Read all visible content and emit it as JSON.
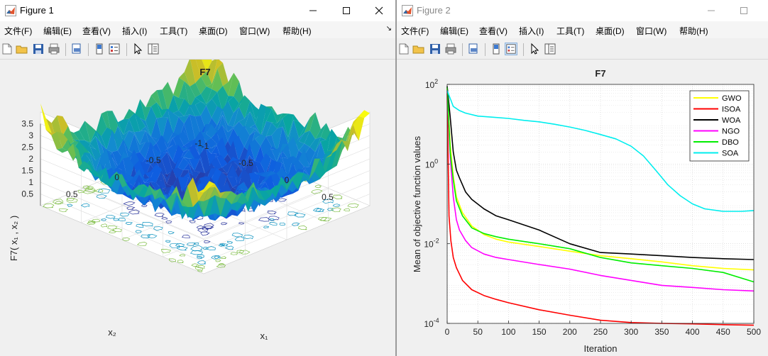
{
  "windows": [
    {
      "title": "Figure 1",
      "menu": [
        "文件(F)",
        "编辑(E)",
        "查看(V)",
        "插入(I)",
        "工具(T)",
        "桌面(D)",
        "窗口(W)",
        "帮助(H)"
      ],
      "menu_overflow_icon": "chevron-icon",
      "window_buttons": [
        "minimize-icon",
        "maximize-icon",
        "close-icon"
      ],
      "toolbar_icons": [
        "new-figure-icon",
        "open-icon",
        "save-icon",
        "print-icon",
        "print-preview-icon",
        "link-icon",
        "colorbar-icon",
        "legend-icon",
        "pointer-icon",
        "property-editor-icon"
      ]
    },
    {
      "title": "Figure 2",
      "menu": [
        "文件(F)",
        "编辑(E)",
        "查看(V)",
        "插入(I)",
        "工具(T)",
        "桌面(D)",
        "窗口(W)",
        "帮助(H)"
      ],
      "window_buttons": [
        "minimize-icon",
        "maximize-icon"
      ],
      "toolbar_icons": [
        "new-figure-icon",
        "open-icon",
        "save-icon",
        "print-icon",
        "print-preview-icon",
        "link-icon",
        "colorbar-icon",
        "legend-icon",
        "pointer-icon",
        "property-editor-icon"
      ]
    }
  ],
  "chart_data": [
    {
      "type": "surface3d",
      "title": "F7",
      "xlabel": "x₁",
      "ylabel": "x₂",
      "zlabel": "F7( x₁ , x₂ )",
      "x_ticks": [
        "-1",
        "-0.5",
        "0",
        "0.5"
      ],
      "y_ticks": [
        "-1",
        "-0.5",
        "0",
        "0.5"
      ],
      "z_ticks": [
        "0.5",
        "1",
        "1.5",
        "2",
        "2.5",
        "3",
        "3.5"
      ],
      "xlim": [
        -1,
        1
      ],
      "ylim": [
        -1,
        1
      ],
      "zlim": [
        0,
        4
      ],
      "colormap": "parula",
      "contour_on_floor": true,
      "grid": true
    },
    {
      "type": "line",
      "title": "F7",
      "xlabel": "Iteration",
      "ylabel": "Mean of objective function values",
      "yscale": "log",
      "xlim": [
        0,
        500
      ],
      "ylim": [
        0.0001,
        100
      ],
      "x_ticks": [
        "0",
        "50",
        "100",
        "150",
        "200",
        "250",
        "300",
        "350",
        "400",
        "450",
        "500"
      ],
      "y_ticks": [
        {
          "base": "10",
          "exp": "-4",
          "value": 0.0001
        },
        {
          "base": "10",
          "exp": "-2",
          "value": 0.01
        },
        {
          "base": "10",
          "exp": "0",
          "value": 1
        },
        {
          "base": "10",
          "exp": "2",
          "value": 100
        }
      ],
      "grid": true,
      "legend_position": "top-right",
      "series": [
        {
          "name": "GWO",
          "color": "#ffff00",
          "x": [
            0,
            5,
            10,
            15,
            25,
            40,
            60,
            80,
            100,
            150,
            200,
            250,
            300,
            350,
            400,
            450,
            500
          ],
          "y": [
            80,
            3,
            0.5,
            0.15,
            0.06,
            0.028,
            0.017,
            0.013,
            0.011,
            0.0085,
            0.0065,
            0.005,
            0.0042,
            0.0035,
            0.0028,
            0.0024,
            0.0022
          ]
        },
        {
          "name": "ISOA",
          "color": "#ff0000",
          "x": [
            0,
            3,
            6,
            10,
            15,
            25,
            40,
            60,
            80,
            100,
            150,
            200,
            250,
            300,
            350,
            400,
            450,
            500
          ],
          "y": [
            60,
            0.05,
            0.012,
            0.0045,
            0.0025,
            0.0012,
            0.0007,
            0.0005,
            0.0004,
            0.00033,
            0.00022,
            0.00016,
            0.00012,
            0.000105,
            0.0001,
            9.7e-05,
            9.3e-05,
            9e-05
          ]
        },
        {
          "name": "WOA",
          "color": "#000000",
          "x": [
            0,
            5,
            10,
            15,
            20,
            30,
            40,
            60,
            80,
            100,
            150,
            200,
            250,
            300,
            350,
            400,
            450,
            500
          ],
          "y": [
            90,
            15,
            2,
            0.7,
            0.45,
            0.2,
            0.13,
            0.075,
            0.05,
            0.04,
            0.022,
            0.01,
            0.006,
            0.0055,
            0.005,
            0.0045,
            0.0042,
            0.004
          ]
        },
        {
          "name": "NGO",
          "color": "#ff00ff",
          "x": [
            0,
            5,
            10,
            15,
            20,
            30,
            40,
            60,
            80,
            100,
            150,
            200,
            250,
            300,
            350,
            400,
            450,
            500
          ],
          "y": [
            70,
            1.5,
            0.15,
            0.04,
            0.022,
            0.012,
            0.008,
            0.0055,
            0.0045,
            0.004,
            0.003,
            0.0023,
            0.0016,
            0.0012,
            0.0009,
            0.0008,
            0.0007,
            0.00065
          ]
        },
        {
          "name": "DBO",
          "color": "#00ee00",
          "x": [
            0,
            5,
            10,
            15,
            25,
            40,
            60,
            80,
            100,
            150,
            200,
            250,
            300,
            350,
            400,
            450,
            500
          ],
          "y": [
            85,
            2,
            0.4,
            0.12,
            0.05,
            0.025,
            0.018,
            0.015,
            0.013,
            0.01,
            0.0075,
            0.0045,
            0.0033,
            0.0028,
            0.0024,
            0.0019,
            0.0011
          ]
        },
        {
          "name": "SOA",
          "color": "#00eeee",
          "x": [
            0,
            10,
            20,
            30,
            50,
            75,
            100,
            125,
            150,
            175,
            200,
            225,
            250,
            275,
            300,
            320,
            340,
            360,
            380,
            400,
            420,
            450,
            480,
            500
          ],
          "y": [
            70,
            28,
            22,
            19,
            16,
            15,
            14,
            12.5,
            11.5,
            10,
            8.5,
            7,
            5.5,
            4.3,
            2.8,
            1.6,
            0.7,
            0.3,
            0.16,
            0.1,
            0.075,
            0.065,
            0.065,
            0.068
          ]
        }
      ]
    }
  ]
}
